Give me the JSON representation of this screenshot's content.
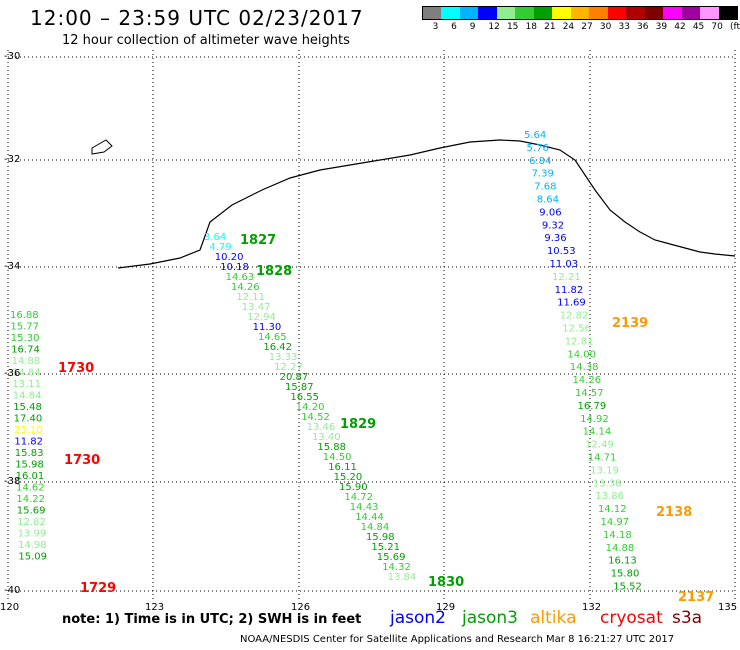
{
  "header": {
    "title": "12:00 – 23:59 UTC 02/23/2017",
    "subtitle": "12 hour collection of altimeter wave heights"
  },
  "color_bar": {
    "colors": [
      "#7f7f7f",
      "#00ffff",
      "#00b4ff",
      "#0000ff",
      "#90ee90",
      "#32cd32",
      "#00a000",
      "#ffff00",
      "#ffb400",
      "#ff7f00",
      "#ff0000",
      "#b00000",
      "#800000",
      "#ff00ff",
      "#a000a0",
      "#ff96ff",
      "#000000"
    ],
    "labels": [
      "3",
      "6",
      "9",
      "12",
      "15",
      "18",
      "21",
      "24",
      "27",
      "30",
      "33",
      "36",
      "39",
      "42",
      "45",
      "70",
      "(ft)"
    ]
  },
  "axes": {
    "lat_labels": [
      "-30",
      "-32",
      "-34",
      "-36",
      "-38",
      "-40"
    ],
    "lon_labels": [
      "120",
      "123",
      "126",
      "129",
      "132",
      "135"
    ]
  },
  "tracks": [
    {
      "points": [
        {
          "v": "16.88",
          "c": "#32cd32"
        },
        {
          "v": "15.77",
          "c": "#32cd32"
        },
        {
          "v": "15.30",
          "c": "#32cd32"
        },
        {
          "v": "16.74",
          "c": "#00a000"
        },
        {
          "v": "14.88",
          "c": "#90ee90"
        },
        {
          "v": "14.84",
          "c": "#90ee90"
        },
        {
          "v": "13.11",
          "c": "#90ee90"
        },
        {
          "v": "14.84",
          "c": "#90ee90"
        },
        {
          "v": "15.48",
          "c": "#00a000"
        },
        {
          "v": "17.40",
          "c": "#00a000"
        },
        {
          "v": "23.10",
          "c": "#ffff00"
        },
        {
          "v": "11.82",
          "c": "#0000ff"
        },
        {
          "v": "15.83",
          "c": "#00a000"
        },
        {
          "v": "15.98",
          "c": "#00a000"
        },
        {
          "v": "16.01",
          "c": "#00a000"
        },
        {
          "v": "14.62",
          "c": "#32cd32"
        },
        {
          "v": "14.22",
          "c": "#32cd32"
        },
        {
          "v": "15.69",
          "c": "#00a000"
        },
        {
          "v": "12.82",
          "c": "#90ee90"
        },
        {
          "v": "13.99",
          "c": "#90ee90"
        },
        {
          "v": "14.98",
          "c": "#90ee90"
        },
        {
          "v": "15.09",
          "c": "#00a000"
        }
      ]
    },
    {
      "points": [
        {
          "v": "3.64",
          "c": "#00ffff"
        },
        {
          "v": "4.79",
          "c": "#00ffff"
        },
        {
          "v": "10.20",
          "c": "#0000ff"
        },
        {
          "v": "10.18",
          "c": "#0000ff"
        },
        {
          "v": "14.63",
          "c": "#32cd32"
        },
        {
          "v": "14.26",
          "c": "#32cd32"
        },
        {
          "v": "12.11",
          "c": "#90ee90"
        },
        {
          "v": "13.47",
          "c": "#90ee90"
        },
        {
          "v": "12.94",
          "c": "#90ee90"
        },
        {
          "v": "11.30",
          "c": "#0000ff"
        },
        {
          "v": "14.65",
          "c": "#32cd32"
        },
        {
          "v": "16.42",
          "c": "#00a000"
        },
        {
          "v": "13.33",
          "c": "#90ee90"
        },
        {
          "v": "12.27",
          "c": "#90ee90"
        },
        {
          "v": "20.87",
          "c": "#00a000"
        },
        {
          "v": "15.87",
          "c": "#00a000"
        },
        {
          "v": "16.55",
          "c": "#00a000"
        },
        {
          "v": "14.20",
          "c": "#32cd32"
        },
        {
          "v": "14.52",
          "c": "#32cd32"
        },
        {
          "v": "13.46",
          "c": "#90ee90"
        },
        {
          "v": "13.40",
          "c": "#90ee90"
        },
        {
          "v": "15.88",
          "c": "#00a000"
        },
        {
          "v": "14.50",
          "c": "#32cd32"
        },
        {
          "v": "16.11",
          "c": "#00a000"
        },
        {
          "v": "15.20",
          "c": "#00a000"
        },
        {
          "v": "15.90",
          "c": "#00a000"
        },
        {
          "v": "14.72",
          "c": "#32cd32"
        },
        {
          "v": "14.43",
          "c": "#32cd32"
        },
        {
          "v": "14.44",
          "c": "#32cd32"
        },
        {
          "v": "14.84",
          "c": "#32cd32"
        },
        {
          "v": "15.98",
          "c": "#00a000"
        },
        {
          "v": "15.21",
          "c": "#00a000"
        },
        {
          "v": "15.69",
          "c": "#00a000"
        },
        {
          "v": "14.32",
          "c": "#32cd32"
        },
        {
          "v": "13.84",
          "c": "#90ee90"
        }
      ]
    },
    {
      "points": [
        {
          "v": "5.64",
          "c": "#00b4ff"
        },
        {
          "v": "5.76",
          "c": "#00b4ff"
        },
        {
          "v": "6.84",
          "c": "#00b4ff"
        },
        {
          "v": "7.39",
          "c": "#00b4ff"
        },
        {
          "v": "7.68",
          "c": "#00b4ff"
        },
        {
          "v": "8.64",
          "c": "#00b4ff"
        },
        {
          "v": "9.06",
          "c": "#0000ff"
        },
        {
          "v": "9.32",
          "c": "#0000ff"
        },
        {
          "v": "9.36",
          "c": "#0000ff"
        },
        {
          "v": "10.53",
          "c": "#0000ff"
        },
        {
          "v": "11.03",
          "c": "#0000ff"
        },
        {
          "v": "12.21",
          "c": "#90ee90"
        },
        {
          "v": "11.82",
          "c": "#0000ff"
        },
        {
          "v": "11.69",
          "c": "#0000ff"
        },
        {
          "v": "12.82",
          "c": "#90ee90"
        },
        {
          "v": "12.56",
          "c": "#90ee90"
        },
        {
          "v": "12.81",
          "c": "#90ee90"
        },
        {
          "v": "14.00",
          "c": "#32cd32"
        },
        {
          "v": "14.38",
          "c": "#32cd32"
        },
        {
          "v": "14.26",
          "c": "#32cd32"
        },
        {
          "v": "14.57",
          "c": "#32cd32"
        },
        {
          "v": "16.79",
          "c": "#00a000"
        },
        {
          "v": "14.92",
          "c": "#32cd32"
        },
        {
          "v": "14.14",
          "c": "#32cd32"
        },
        {
          "v": "12.49",
          "c": "#90ee90"
        },
        {
          "v": "14.71",
          "c": "#32cd32"
        },
        {
          "v": "13.19",
          "c": "#90ee90"
        },
        {
          "v": "13.38",
          "c": "#90ee90"
        },
        {
          "v": "13.86",
          "c": "#90ee90"
        },
        {
          "v": "14.12",
          "c": "#32cd32"
        },
        {
          "v": "14.97",
          "c": "#32cd32"
        },
        {
          "v": "14.18",
          "c": "#32cd32"
        },
        {
          "v": "14.88",
          "c": "#32cd32"
        },
        {
          "v": "16.13",
          "c": "#00a000"
        },
        {
          "v": "15.80",
          "c": "#00a000"
        },
        {
          "v": "15.52",
          "c": "#00a000"
        }
      ]
    }
  ],
  "time_labels": [
    {
      "t": "1730",
      "c": "#ff0000"
    },
    {
      "t": "1730",
      "c": "#ff0000"
    },
    {
      "t": "1729",
      "c": "#ff0000"
    },
    {
      "t": "1827",
      "c": "#00a000"
    },
    {
      "t": "1828",
      "c": "#00a000"
    },
    {
      "t": "1829",
      "c": "#00a000"
    },
    {
      "t": "1830",
      "c": "#00a000"
    },
    {
      "t": "2139",
      "c": "#ff9900"
    },
    {
      "t": "2138",
      "c": "#ff9900"
    },
    {
      "t": "2137",
      "c": "#ff9900"
    }
  ],
  "footer": {
    "note": "note:  1) Time is in UTC;  2) SWH is in feet",
    "legend": [
      {
        "name": "jason2",
        "color": "#0000ff"
      },
      {
        "name": "jason3",
        "color": "#00a000"
      },
      {
        "name": "altika",
        "color": "#ff9900"
      },
      {
        "name": "cryosat",
        "color": "#ff0000"
      },
      {
        "name": "s3a",
        "color": "#800000"
      }
    ],
    "credit": "NOAA/NESDIS Center for Satellite Applications and Research    Mar  8 16:21:27 UTC 2017"
  }
}
